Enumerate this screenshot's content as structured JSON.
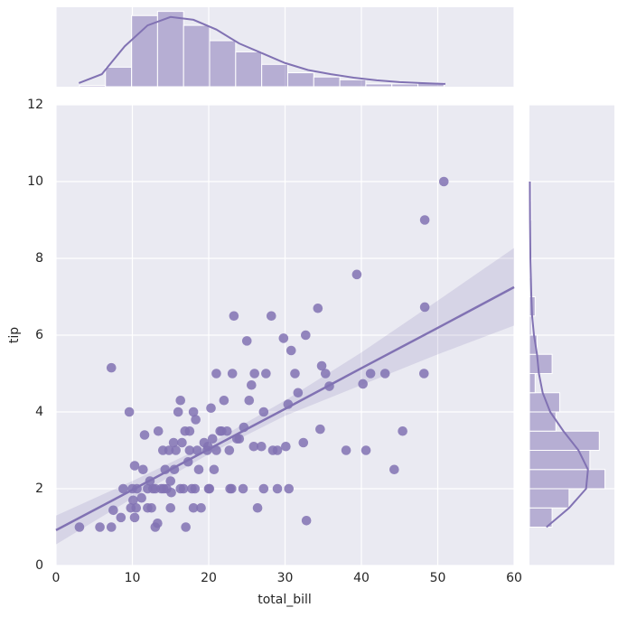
{
  "chart_data": [
    {
      "type": "scatter",
      "x_label": "total_bill",
      "y_label": "tip",
      "color": "#8172b3",
      "grid": true,
      "xlim": [
        0,
        60
      ],
      "ylim": [
        0,
        12
      ],
      "xticks": [
        0,
        10,
        20,
        30,
        40,
        50,
        60
      ],
      "yticks": [
        0,
        2,
        4,
        6,
        8,
        10,
        12
      ],
      "x": [
        3.07,
        5.75,
        7.25,
        7.25,
        7.5,
        8.5,
        8.8,
        9.6,
        9.8,
        10.1,
        10.3,
        10.3,
        10.5,
        10.6,
        11.2,
        11.4,
        11.6,
        12.0,
        12.3,
        12.5,
        12.7,
        13.0,
        13.0,
        13.3,
        13.4,
        13.8,
        14.0,
        14.3,
        14.5,
        14.8,
        15.0,
        15.0,
        15.4,
        15.5,
        15.7,
        16.0,
        16.3,
        16.3,
        16.5,
        16.9,
        17.0,
        17.3,
        17.5,
        17.8,
        18.0,
        18.0,
        18.3,
        18.5,
        18.7,
        19.0,
        19.4,
        19.8,
        20.0,
        20.3,
        20.5,
        20.7,
        21.0,
        21.0,
        21.5,
        22.0,
        22.4,
        22.8,
        23.1,
        23.3,
        23.7,
        24.0,
        24.5,
        24.6,
        25.0,
        25.3,
        25.6,
        26.0,
        26.4,
        26.9,
        27.2,
        27.5,
        28.2,
        28.4,
        29.0,
        29.8,
        30.4,
        30.5,
        30.8,
        31.3,
        31.7,
        32.4,
        32.7,
        32.8,
        34.3,
        34.6,
        34.8,
        35.3,
        35.8,
        38.0,
        39.4,
        40.2,
        40.6,
        41.2,
        43.1,
        44.3,
        45.4,
        48.2,
        48.3,
        48.3,
        50.8,
        20.1,
        17.5,
        14.1,
        12.0,
        10.0,
        22.7,
        25.9,
        18.2,
        16.7,
        15.1,
        19.9,
        21.7,
        23.0,
        29.0,
        27.2,
        30.1
      ],
      "y": [
        1.0,
        1.0,
        1.0,
        5.15,
        1.44,
        1.25,
        2.0,
        4.0,
        1.5,
        1.7,
        2.6,
        1.25,
        1.5,
        2.0,
        1.76,
        2.5,
        3.4,
        1.5,
        2.2,
        1.5,
        2.0,
        2.0,
        1.0,
        1.1,
        3.5,
        2.0,
        3.0,
        2.5,
        2.0,
        3.0,
        1.5,
        2.2,
        3.2,
        2.5,
        3.0,
        4.0,
        2.0,
        4.3,
        3.2,
        3.5,
        1.0,
        2.7,
        3.0,
        2.0,
        4.0,
        1.5,
        3.8,
        3.0,
        2.5,
        1.5,
        3.2,
        3.0,
        2.0,
        4.1,
        3.3,
        2.5,
        3.0,
        5.0,
        3.5,
        4.3,
        3.5,
        2.0,
        5.0,
        6.5,
        3.3,
        3.3,
        2.0,
        3.6,
        5.85,
        4.3,
        4.7,
        5.0,
        1.5,
        3.1,
        4.0,
        5.0,
        6.5,
        3.0,
        2.0,
        5.92,
        4.2,
        2.0,
        5.6,
        5.0,
        4.5,
        3.2,
        6.0,
        1.17,
        6.7,
        3.55,
        5.2,
        5.0,
        4.67,
        3.0,
        7.58,
        4.73,
        3.0,
        5.0,
        5.0,
        2.5,
        3.5,
        5.0,
        6.73,
        9.0,
        10.0,
        2.0,
        3.5,
        2.0,
        2.0,
        2.0,
        3.0,
        3.1,
        2.0,
        2.0,
        1.9,
        3.1,
        3.5,
        2.0,
        3.0,
        2.0,
        3.1
      ],
      "regression": {
        "x": [
          0,
          10,
          20,
          30,
          40,
          50,
          60
        ],
        "y": [
          0.92,
          1.97,
          3.03,
          4.08,
          5.14,
          6.19,
          7.25
        ],
        "lower": [
          0.55,
          1.75,
          2.9,
          3.9,
          4.7,
          5.5,
          6.25
        ],
        "upper": [
          1.3,
          2.2,
          3.16,
          4.3,
          5.55,
          6.9,
          8.27
        ]
      }
    },
    {
      "type": "histogram",
      "orientation": "vertical",
      "color": "#8172b3",
      "xlim": [
        0,
        60
      ],
      "ylim": [
        0,
        57
      ],
      "bins": [
        3.07,
        6.48,
        9.89,
        13.3,
        16.71,
        20.12,
        23.53,
        26.94,
        30.35,
        33.76,
        37.17,
        40.58,
        43.99,
        47.4,
        50.81
      ],
      "counts": [
        1,
        14,
        51,
        54,
        44,
        33,
        25,
        16,
        10,
        7,
        5,
        2,
        2,
        3
      ],
      "kde": {
        "x": [
          3,
          6,
          9,
          12,
          15,
          18,
          21,
          24,
          27,
          30,
          33,
          36,
          39,
          42,
          45,
          48,
          51
        ],
        "values": [
          2.6,
          9,
          29,
          44,
          50,
          48,
          41,
          31,
          24,
          17,
          12,
          9,
          6.5,
          4.6,
          3.3,
          2.6,
          2
        ]
      }
    },
    {
      "type": "histogram",
      "orientation": "horizontal",
      "color": "#8172b3",
      "xlim": [
        0,
        45
      ],
      "ylim": [
        0,
        12
      ],
      "bins": [
        1,
        1.5,
        2,
        2.5,
        3,
        3.5,
        4,
        4.5,
        5,
        5.5,
        6,
        6.5,
        7,
        7.5,
        8,
        8.5,
        9,
        9.5,
        10
      ],
      "counts": [
        12,
        21,
        40,
        32,
        37,
        14,
        16,
        3,
        12,
        4,
        1,
        3,
        0,
        1,
        0,
        0,
        1,
        1
      ],
      "kde": {
        "x": [
          1,
          1.5,
          2,
          2.5,
          3,
          3.5,
          4,
          4.5,
          5,
          5.5,
          6,
          6.5,
          7,
          8,
          9,
          10
        ],
        "values": [
          9,
          21,
          30,
          31,
          26,
          18,
          11,
          7,
          5,
          4,
          2.4,
          1.4,
          1,
          0.5,
          0.3,
          0.2
        ]
      }
    }
  ]
}
